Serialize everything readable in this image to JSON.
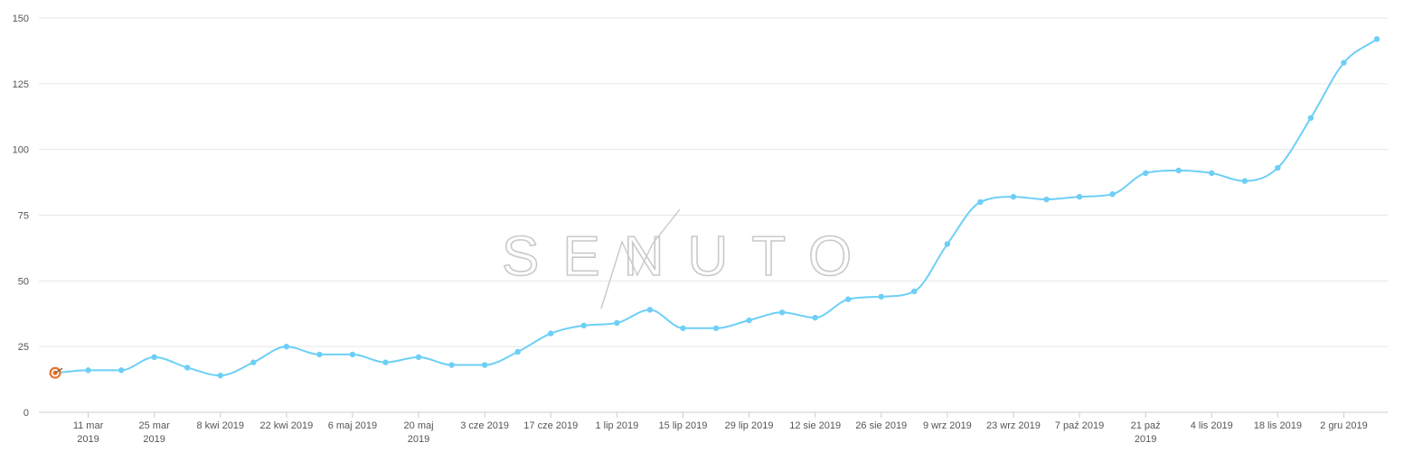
{
  "chart_data": {
    "type": "line",
    "title": "",
    "xlabel": "",
    "ylabel": "",
    "ylim": [
      0,
      150
    ],
    "yticks": [
      "0",
      "25",
      "50",
      "75",
      "100",
      "125",
      "150"
    ],
    "grid": true,
    "series_color": "#6dcff6",
    "grid_color": "#e6e6e6",
    "x_tick_labels": [
      [
        "11 mar",
        "2019"
      ],
      [
        "25 mar",
        "2019"
      ],
      [
        "8 kwi 2019"
      ],
      [
        "22 kwi 2019"
      ],
      [
        "6 maj 2019"
      ],
      [
        "20 maj",
        "2019"
      ],
      [
        "3 cze 2019"
      ],
      [
        "17 cze 2019"
      ],
      [
        "1 lip 2019"
      ],
      [
        "15 lip 2019"
      ],
      [
        "29 lip 2019"
      ],
      [
        "12 sie 2019"
      ],
      [
        "26 sie 2019"
      ],
      [
        "9 wrz 2019"
      ],
      [
        "23 wrz 2019"
      ],
      [
        "7 paź 2019"
      ],
      [
        "21 paź",
        "2019"
      ],
      [
        "4 lis 2019"
      ],
      [
        "18 lis 2019"
      ],
      [
        "2 gru 2019"
      ]
    ],
    "x": [
      "2019-03-04",
      "2019-03-11",
      "2019-03-18",
      "2019-03-25",
      "2019-04-01",
      "2019-04-08",
      "2019-04-15",
      "2019-04-22",
      "2019-04-29",
      "2019-05-06",
      "2019-05-13",
      "2019-05-20",
      "2019-05-27",
      "2019-06-03",
      "2019-06-10",
      "2019-06-17",
      "2019-06-24",
      "2019-07-01",
      "2019-07-08",
      "2019-07-15",
      "2019-07-22",
      "2019-07-29",
      "2019-08-05",
      "2019-08-12",
      "2019-08-19",
      "2019-08-26",
      "2019-09-02",
      "2019-09-09",
      "2019-09-16",
      "2019-09-23",
      "2019-09-30",
      "2019-10-07",
      "2019-10-14",
      "2019-10-21",
      "2019-10-28",
      "2019-11-04",
      "2019-11-11",
      "2019-11-18",
      "2019-11-25",
      "2019-12-02",
      "2019-12-09"
    ],
    "series": [
      {
        "values": [
          15,
          16,
          16,
          21,
          17,
          14,
          19,
          25,
          22,
          22,
          19,
          21,
          18,
          18,
          23,
          30,
          33,
          34,
          39,
          32,
          32,
          35,
          38,
          36,
          43,
          44,
          46,
          64,
          80,
          82,
          81,
          82,
          83,
          91,
          92,
          91,
          88,
          93,
          112,
          133,
          142
        ]
      }
    ],
    "annotations": [
      {
        "type": "marker-icon",
        "icon": "target-icon",
        "at_index": 0,
        "color": "#e8732c"
      }
    ],
    "watermark": {
      "text": "SENUTO",
      "color": "#c9c9c9"
    }
  }
}
